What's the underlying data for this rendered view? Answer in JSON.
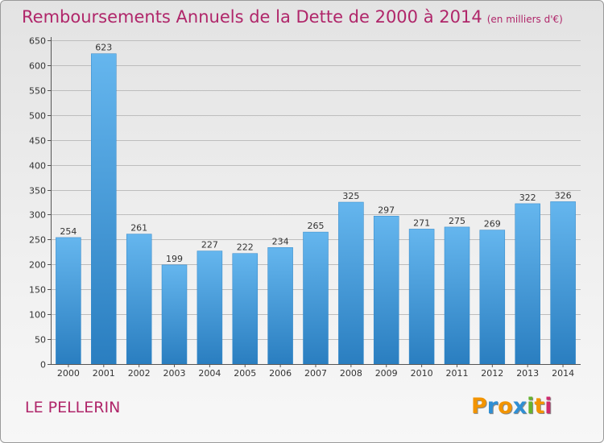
{
  "header": {
    "title": "Remboursements Annuels de la Dette de 2000 à 2014",
    "unit": "(en milliers d'€)"
  },
  "footer": {
    "commune": "LE PELLERIN",
    "logo_text": "Proxiti"
  },
  "colors": {
    "title": "#b0266a",
    "bar_light": "#65b6ee",
    "bar_dark": "#2a7ec0",
    "logo": [
      "#f29400",
      "#2f8fd4",
      "#f29400",
      "#2f8fd4",
      "#66b32e",
      "#f29400",
      "#cf2a6e"
    ]
  },
  "chart_data": {
    "type": "bar",
    "categories": [
      "2000",
      "2001",
      "2002",
      "2003",
      "2004",
      "2005",
      "2006",
      "2007",
      "2008",
      "2009",
      "2010",
      "2011",
      "2012",
      "2013",
      "2014"
    ],
    "values": [
      254,
      623,
      261,
      199,
      227,
      222,
      234,
      265,
      325,
      297,
      271,
      275,
      269,
      322,
      326
    ],
    "title": "Remboursements Annuels de la Dette de 2000 à 2014",
    "ylim": [
      0,
      650
    ],
    "yticks": [
      0,
      50,
      100,
      150,
      200,
      250,
      300,
      350,
      400,
      450,
      500,
      550,
      600,
      650
    ],
    "grid": true,
    "data_labels": true
  }
}
